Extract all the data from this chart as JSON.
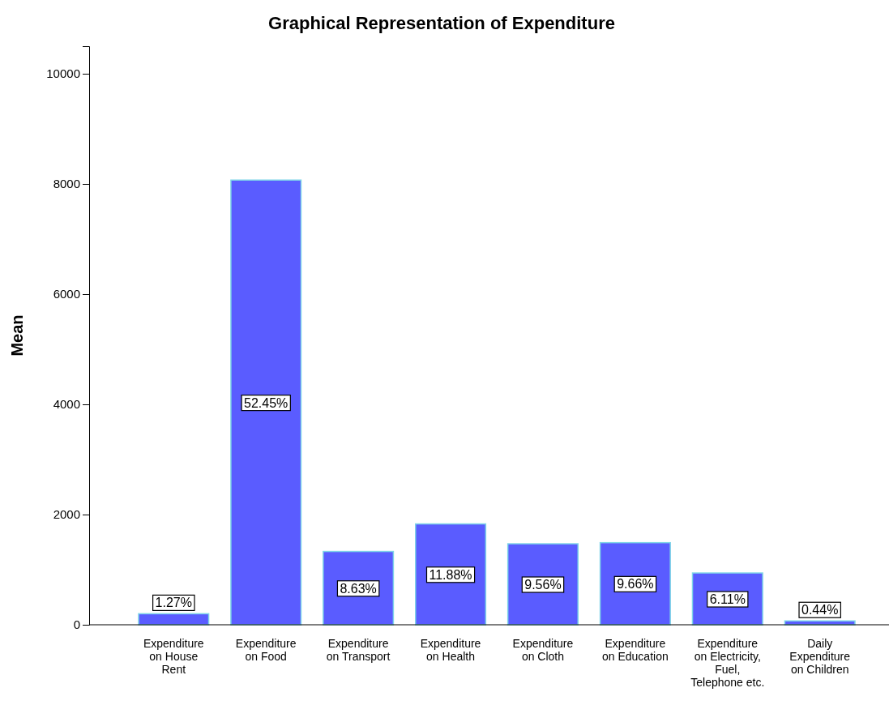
{
  "chart_data": {
    "type": "bar",
    "title": "Graphical Representation of Expenditure",
    "ylabel": "Mean",
    "categories": [
      "Expenditure on House Rent",
      "Expenditure on Food",
      "Expenditure on Transport",
      "Expenditure on Health",
      "Expenditure on Cloth",
      "Expenditure on Education",
      "Expenditure on Electricity, Fuel, Telephone etc.",
      "Daily Expenditure on Children"
    ],
    "values": [
      200,
      8070,
      1330,
      1830,
      1470,
      1490,
      940,
      70
    ],
    "annotations": [
      "1.27%",
      "52.45%",
      "8.63%",
      "11.88%",
      "9.56%",
      "9.66%",
      "6.11%",
      "0.44%"
    ],
    "color": "#5a5cff",
    "ylim": [
      0,
      10500
    ],
    "yticks": [
      0,
      2000,
      4000,
      6000,
      8000,
      10000
    ],
    "grid": false
  }
}
